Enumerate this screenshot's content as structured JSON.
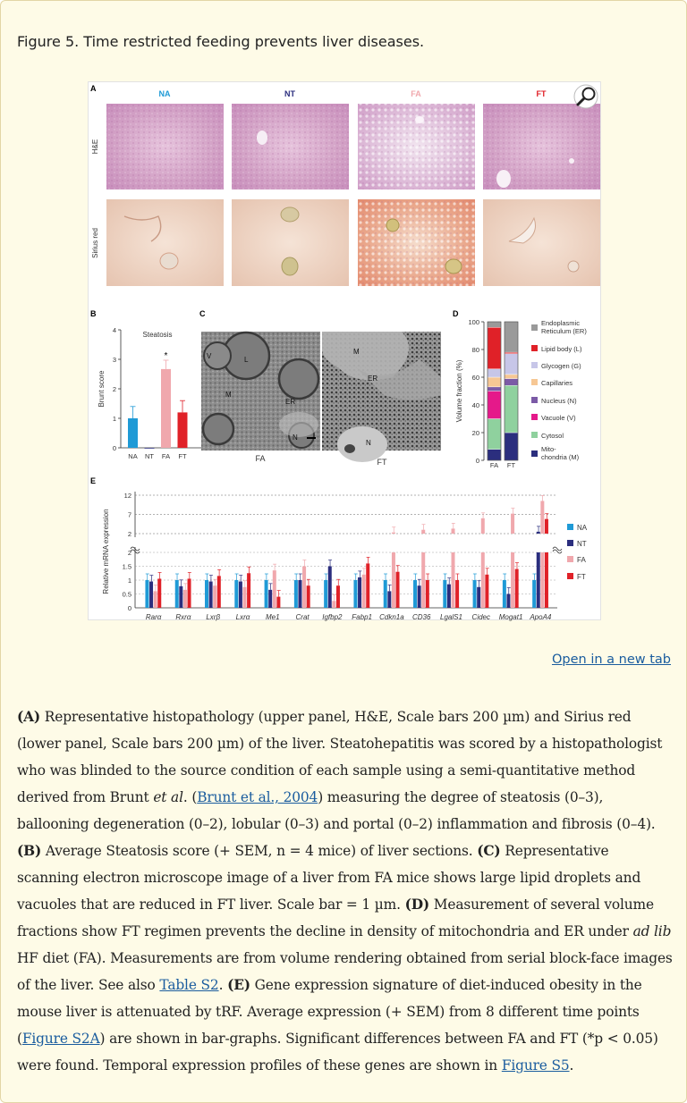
{
  "page": {
    "figure_title": "Figure 5. Time restricted feeding prevents liver diseases.",
    "open_link": "Open in a new tab"
  },
  "colors": {
    "NA": "#1f9ad6",
    "NT": "#2b2e7e",
    "FA": "#f0a8ad",
    "FT": "#e02128",
    "card_bg": "#fefbe7",
    "link": "#1a5c9e"
  },
  "figure": {
    "panel_labels": [
      "A",
      "B",
      "C",
      "D",
      "E"
    ],
    "panelA": {
      "columns": [
        "NA",
        "NT",
        "FA",
        "FT"
      ],
      "rows": [
        "H&E",
        "Sirius red"
      ],
      "zoom_icon": "magnifier-icon"
    },
    "panelC": {
      "left_caption": "FA",
      "right_caption": "FT",
      "left_labels": [
        "V",
        "L",
        "M",
        "ER",
        "N"
      ],
      "right_labels": [
        "M",
        "ER",
        "N"
      ]
    },
    "panelD": {
      "ylabel": "Volume fraction (%)",
      "legend": [
        {
          "label": "Endoplasmic Reticulum (ER)",
          "color": "#9a9a9a"
        },
        {
          "label": "Lipid body (L)",
          "color": "#e02128"
        },
        {
          "label": "Glycogen (G)",
          "color": "#c7c6e8"
        },
        {
          "label": "Capillaries",
          "color": "#f6c794"
        },
        {
          "label": "Nucleus (N)",
          "color": "#7b5aa6"
        },
        {
          "label": "Vacuole (V)",
          "color": "#e5198a"
        },
        {
          "label": "Cytosol",
          "color": "#8fd19e"
        },
        {
          "label": "Mito-chondria (M)",
          "color": "#2b2e7e"
        }
      ]
    }
  },
  "chart_data": [
    {
      "type": "bar",
      "title": "Steatosis",
      "ylabel": "Brunt score",
      "ylim": [
        0,
        4
      ],
      "yticks": [
        0,
        1,
        2,
        3,
        4
      ],
      "categories": [
        "NA",
        "NT",
        "FA",
        "FT"
      ],
      "values": [
        1.0,
        0.0,
        2.67,
        1.2
      ],
      "errors": [
        0.4,
        0,
        0.3,
        0.4
      ],
      "annotation": "*"
    },
    {
      "type": "bar",
      "title": "",
      "ylabel": "Volume fraction (%)",
      "ylim": [
        0,
        100
      ],
      "yticks": [
        0,
        20,
        40,
        60,
        80,
        100
      ],
      "categories": [
        "FA",
        "FT"
      ],
      "stacked": true,
      "series": [
        {
          "name": "Mito-chondria (M)",
          "values": [
            8,
            20
          ]
        },
        {
          "name": "Cytosol",
          "values": [
            22,
            34
          ]
        },
        {
          "name": "Vacuole (V)",
          "values": [
            20,
            0
          ]
        },
        {
          "name": "Nucleus (N)",
          "values": [
            3,
            5
          ]
        },
        {
          "name": "Capillaries",
          "values": [
            7,
            3
          ]
        },
        {
          "name": "Glycogen (G)",
          "values": [
            6,
            15
          ]
        },
        {
          "name": "Lipid body (L)",
          "values": [
            30,
            1
          ]
        },
        {
          "name": "Endoplasmic Reticulum (ER)",
          "values": [
            4,
            22
          ]
        }
      ]
    },
    {
      "type": "bar",
      "title": "",
      "ylabel": "Relative mRNA expression",
      "yticks_upper": [
        2,
        7,
        12
      ],
      "yticks_lower": [
        0,
        0.5,
        1,
        1.5,
        2
      ],
      "categories": [
        "Rarα",
        "Rxrα",
        "Lxrβ",
        "Lxrα",
        "Me1",
        "Crat",
        "Igfbp2",
        "Fabp1",
        "Cdkn1a",
        "CD36",
        "LgalS1",
        "Cidec",
        "Mogat1",
        "ApoA4"
      ],
      "series": [
        {
          "name": "NA",
          "values": [
            1.0,
            1.0,
            1.0,
            1.0,
            1.0,
            1.0,
            1.0,
            1.0,
            1.0,
            1.0,
            1.0,
            1.0,
            1.0,
            1.0
          ]
        },
        {
          "name": "NT",
          "values": [
            0.95,
            0.78,
            0.95,
            0.95,
            0.65,
            1.0,
            1.5,
            1.1,
            0.6,
            0.8,
            0.85,
            0.75,
            0.5,
            2.5
          ]
        },
        {
          "name": "FA",
          "values": [
            0.6,
            0.65,
            0.8,
            0.75,
            1.35,
            1.5,
            0.25,
            1.2,
            2.3,
            3.0,
            3.3,
            6.0,
            7.2,
            10.5
          ]
        },
        {
          "name": "FT",
          "values": [
            1.05,
            1.05,
            1.15,
            1.25,
            0.4,
            0.8,
            0.8,
            1.6,
            1.3,
            1.0,
            1.0,
            1.2,
            1.4,
            5.8
          ]
        }
      ],
      "legend": [
        "NA",
        "NT",
        "FA",
        "FT"
      ]
    }
  ],
  "caption": {
    "a_label": "(A)",
    "a_text": " Representative histopathology (upper panel, H&E, Scale bars 200 µm) and Sirius red (lower panel, Scale bars 200 µm) of the liver. Steatohepatitis was scored by a histopathologist who was blinded to the source condition of each sample using a semi-quantitative method derived from Brunt ",
    "et_al": "et al",
    "a_text2": ". (",
    "link_brunt": "Brunt et al., 2004",
    "a_text3": ") measuring the degree of steatosis (0–3), ballooning degeneration (0–2), lobular (0–3) and portal (0–2) inflammation and fibrosis (0–4). ",
    "b_label": "(B)",
    "b_text": " Average Steatosis score (+ SEM, n = 4 mice) of liver sections. ",
    "c_label": "(C)",
    "c_text": " Representative scanning electron microscope image of a liver from FA mice shows large lipid droplets and vacuoles that are reduced in FT liver. Scale bar = 1 µm. ",
    "d_label": "(D)",
    "d_text": " Measurement of several volume fractions show FT regimen prevents the decline in density of mitochondria and ER under ",
    "ad_lib": "ad lib",
    "d_text2": " HF diet (FA). Measurements are from volume rendering obtained from serial block-face images of the liver. See also ",
    "link_s2": "Table S2",
    "d_text3": ". ",
    "e_label": "(E)",
    "e_text": " Gene expression signature of diet-induced obesity in the mouse liver is attenuated by tRF. Average expression (+ SEM) from 8 different time points (",
    "link_s2a": "Figure S2A",
    "e_text2": ") are shown in bar-graphs. Significant differences between FA and FT (*p < 0.05) were found. Temporal expression profiles of these genes are shown in ",
    "link_s5": "Figure S5",
    "e_text3": "."
  }
}
